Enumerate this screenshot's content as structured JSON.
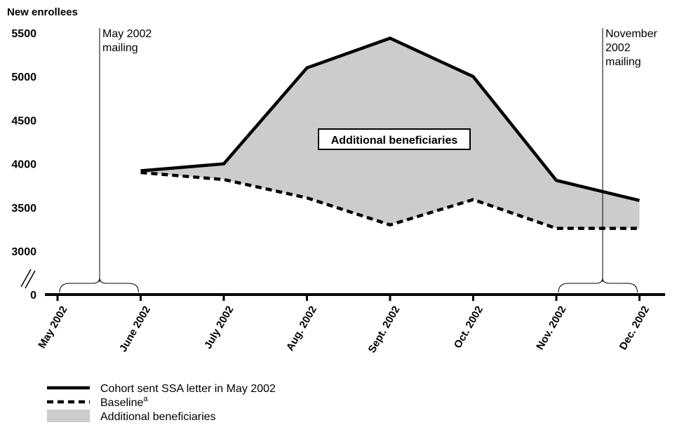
{
  "chart_data": {
    "type": "area",
    "ylabel": "New enrollees",
    "y_ticks": [
      "5500",
      "5000",
      "4500",
      "4000",
      "3500",
      "3000",
      "0"
    ],
    "y_tick_values": [
      5500,
      5000,
      4500,
      4000,
      3500,
      3000,
      0
    ],
    "axis_break": true,
    "ylim": [
      3000,
      5500
    ],
    "categories": [
      "May 2002",
      "June 2002",
      "July 2002",
      "Aug. 2002",
      "Sept. 2002",
      "Oct. 2002",
      "Nov. 2002",
      "Dec. 2002"
    ],
    "series": [
      {
        "name": "Cohort sent SSA letter in May 2002",
        "values": [
          null,
          3920,
          4000,
          5100,
          5440,
          5000,
          3810,
          3580
        ],
        "style": "solid",
        "color": "#000000"
      },
      {
        "name": "Baseline",
        "name_superscript": "a",
        "values": [
          null,
          3900,
          3820,
          3610,
          3300,
          3590,
          3260,
          3260
        ],
        "style": "dashed",
        "color": "#000000"
      }
    ],
    "area": {
      "name": "Additional beneficiaries",
      "color": "#cccccc"
    },
    "callout_label": "Additional beneficiaries",
    "annotations": [
      {
        "lines": [
          "May 2002",
          "mailing"
        ],
        "at_category": "May 2002",
        "bracket_to": "June 2002"
      },
      {
        "lines": [
          "November",
          "2002",
          "mailing"
        ],
        "at_category": "Nov. 2002",
        "bracket_to": "Dec. 2002"
      }
    ],
    "legend": [
      {
        "label": "Cohort sent SSA letter in May 2002",
        "swatch": "solid-line"
      },
      {
        "label": "Baseline",
        "superscript": "a",
        "swatch": "dashed-line"
      },
      {
        "label": "Additional beneficiaries",
        "swatch": "fill"
      }
    ],
    "legend_position": "bottom-left",
    "grid": false
  }
}
